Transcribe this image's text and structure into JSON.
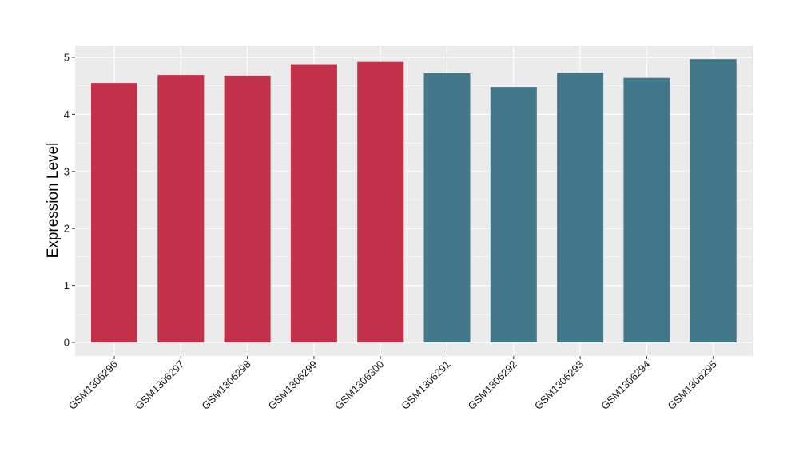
{
  "chart_data": {
    "type": "bar",
    "title": "",
    "xlabel": "",
    "ylabel": "Expression Level",
    "ylim": [
      0,
      5.2
    ],
    "yticks": [
      0,
      1,
      2,
      3,
      4,
      5
    ],
    "grid": true,
    "legend": "none",
    "categories": [
      "GSM1306296",
      "GSM1306297",
      "GSM1306298",
      "GSM1306299",
      "GSM1306300",
      "GSM1306291",
      "GSM1306292",
      "GSM1306293",
      "GSM1306294",
      "GSM1306295"
    ],
    "values": [
      4.55,
      4.69,
      4.68,
      4.88,
      4.92,
      4.72,
      4.48,
      4.73,
      4.64,
      4.97
    ],
    "group_colors": [
      "#c3304a",
      "#c3304a",
      "#c3304a",
      "#c3304a",
      "#c3304a",
      "#42788a",
      "#42788a",
      "#42788a",
      "#42788a",
      "#42788a"
    ],
    "panel_background": "#ebebeb",
    "gridline_color": "#ffffff"
  }
}
